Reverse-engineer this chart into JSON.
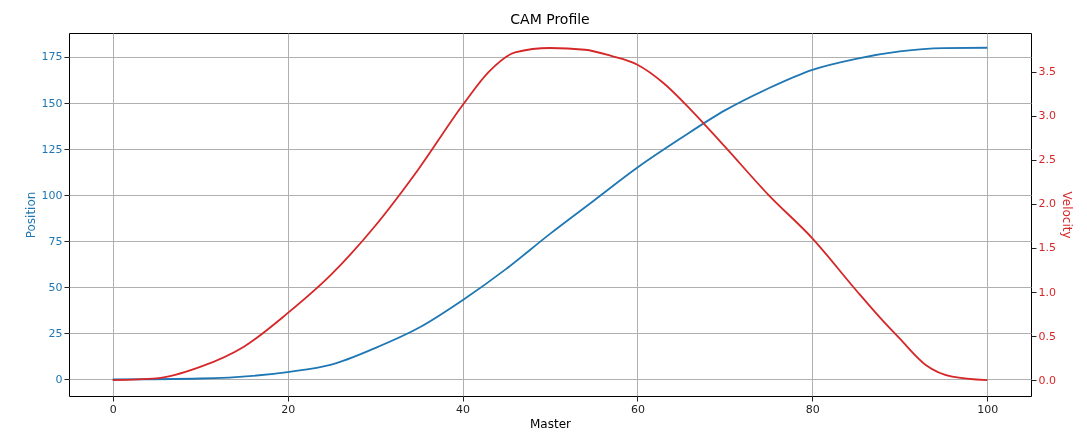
{
  "chart_data": {
    "type": "line",
    "title": "CAM Profile",
    "xlabel": "Master",
    "ylabel": "Position",
    "y2label": "Velocity",
    "xlim": [
      -5,
      105
    ],
    "xticks": [
      0,
      20,
      40,
      60,
      80,
      100
    ],
    "ylim": [
      -9,
      188
    ],
    "yticks": [
      0,
      25,
      50,
      75,
      100,
      125,
      150,
      175
    ],
    "y2lim": [
      -0.18,
      3.94
    ],
    "y2ticks": [
      {
        "value": 0,
        "label": "0.0"
      },
      {
        "value": 0.5,
        "label": "0.5"
      },
      {
        "value": 1,
        "label": "1.0"
      },
      {
        "value": 1.5,
        "label": "1.5"
      },
      {
        "value": 2,
        "label": "2.0"
      },
      {
        "value": 2.5,
        "label": "2.5"
      },
      {
        "value": 3,
        "label": "3.0"
      },
      {
        "value": 3.5,
        "label": "3.5"
      }
    ],
    "grid": true,
    "series": [
      {
        "color": "#1f77b4",
        "x": [
          0,
          10,
          20,
          25,
          30,
          35,
          40,
          45,
          50,
          55,
          60,
          65,
          70,
          75,
          80,
          85,
          90,
          95,
          100
        ],
        "values": [
          0,
          0.5,
          4,
          8,
          17,
          28,
          43,
          60,
          79,
          97,
          115,
          131,
          146,
          158,
          168,
          174,
          178,
          179.8,
          180
        ]
      },
      {
        "color": "#d62728",
        "axis": "y2",
        "x": [
          0,
          5,
          10,
          15,
          20,
          25,
          30,
          35,
          40,
          43,
          46,
          50,
          54,
          57,
          60,
          63,
          66,
          70,
          75,
          80,
          85,
          88,
          90,
          93,
          96,
          100
        ],
        "values": [
          0,
          0.02,
          0.15,
          0.38,
          0.76,
          1.2,
          1.75,
          2.4,
          3.12,
          3.5,
          3.72,
          3.77,
          3.75,
          3.68,
          3.58,
          3.37,
          3.08,
          2.65,
          2.1,
          1.61,
          1.02,
          0.68,
          0.47,
          0.17,
          0.04,
          0
        ]
      }
    ]
  }
}
